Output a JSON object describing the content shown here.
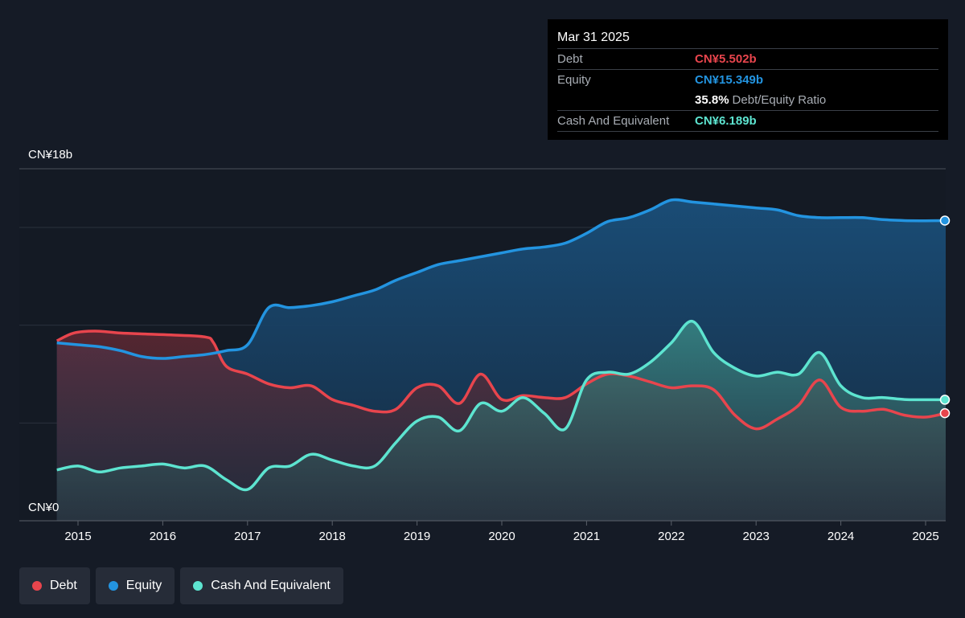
{
  "tooltip": {
    "date": "Mar 31 2025",
    "debt_label": "Debt",
    "debt_value": "CN¥5.502b",
    "equity_label": "Equity",
    "equity_value": "CN¥15.349b",
    "ratio_pct": "35.8%",
    "ratio_label": "Debt/Equity Ratio",
    "cash_label": "Cash And Equivalent",
    "cash_value": "CN¥6.189b"
  },
  "legend": [
    {
      "label": "Debt",
      "color": "#e8454d"
    },
    {
      "label": "Equity",
      "color": "#2394e0"
    },
    {
      "label": "Cash And Equivalent",
      "color": "#5de4d0"
    }
  ],
  "chart_data": {
    "type": "area",
    "ylim": [
      0,
      18
    ],
    "y_tick_labels": {
      "top": "CN¥18b",
      "bottom": "CN¥0"
    },
    "x_tick_labels": [
      "2015",
      "2016",
      "2017",
      "2018",
      "2019",
      "2020",
      "2021",
      "2022",
      "2023",
      "2024",
      "2025"
    ],
    "xlim": [
      2014.75,
      2025.25
    ],
    "colors": {
      "debt": "#e8454d",
      "equity": "#2394e0",
      "cash": "#5de4d0"
    },
    "series": [
      {
        "key": "debt",
        "x": [
          2014.75,
          2014.95,
          2015.2,
          2015.5,
          2015.8,
          2016.1,
          2016.5,
          2016.6,
          2016.75,
          2017.0,
          2017.25,
          2017.5,
          2017.75,
          2018.0,
          2018.25,
          2018.5,
          2018.75,
          2019.0,
          2019.25,
          2019.5,
          2019.75,
          2020.0,
          2020.25,
          2020.5,
          2020.75,
          2021.0,
          2021.25,
          2021.5,
          2021.75,
          2022.0,
          2022.25,
          2022.5,
          2022.75,
          2023.0,
          2023.25,
          2023.5,
          2023.75,
          2024.0,
          2024.25,
          2024.5,
          2024.75,
          2025.0,
          2025.25
        ],
        "values": [
          9.2,
          9.6,
          9.7,
          9.6,
          9.55,
          9.5,
          9.4,
          9.1,
          7.9,
          7.5,
          7.0,
          6.8,
          6.9,
          6.2,
          5.9,
          5.6,
          5.7,
          6.8,
          6.9,
          6.0,
          7.5,
          6.2,
          6.4,
          6.3,
          6.3,
          7.0,
          7.5,
          7.4,
          7.1,
          6.8,
          6.9,
          6.7,
          5.4,
          4.7,
          5.2,
          5.9,
          7.2,
          5.8,
          5.6,
          5.7,
          5.4,
          5.3,
          5.502
        ]
      },
      {
        "key": "equity",
        "x": [
          2014.75,
          2015.0,
          2015.25,
          2015.5,
          2015.75,
          2016.0,
          2016.25,
          2016.5,
          2016.75,
          2017.0,
          2017.25,
          2017.5,
          2017.75,
          2018.0,
          2018.25,
          2018.5,
          2018.75,
          2019.0,
          2019.25,
          2019.5,
          2019.75,
          2020.0,
          2020.25,
          2020.5,
          2020.75,
          2021.0,
          2021.25,
          2021.5,
          2021.75,
          2022.0,
          2022.25,
          2022.5,
          2022.75,
          2023.0,
          2023.25,
          2023.5,
          2023.75,
          2024.0,
          2024.25,
          2024.5,
          2024.75,
          2025.0,
          2025.25
        ],
        "values": [
          9.1,
          9.0,
          8.9,
          8.7,
          8.4,
          8.3,
          8.4,
          8.5,
          8.7,
          9.0,
          10.9,
          10.9,
          11.0,
          11.2,
          11.5,
          11.8,
          12.3,
          12.7,
          13.1,
          13.3,
          13.5,
          13.7,
          13.9,
          14.0,
          14.2,
          14.7,
          15.3,
          15.5,
          15.9,
          16.4,
          16.3,
          16.2,
          16.1,
          16.0,
          15.9,
          15.6,
          15.5,
          15.5,
          15.5,
          15.4,
          15.35,
          15.34,
          15.349
        ]
      },
      {
        "key": "cash",
        "x": [
          2014.75,
          2015.0,
          2015.25,
          2015.5,
          2015.75,
          2016.0,
          2016.25,
          2016.5,
          2016.75,
          2017.0,
          2017.25,
          2017.5,
          2017.75,
          2018.0,
          2018.25,
          2018.5,
          2018.75,
          2019.0,
          2019.25,
          2019.5,
          2019.75,
          2020.0,
          2020.25,
          2020.5,
          2020.75,
          2021.0,
          2021.25,
          2021.5,
          2021.75,
          2022.0,
          2022.25,
          2022.5,
          2022.75,
          2023.0,
          2023.25,
          2023.5,
          2023.75,
          2024.0,
          2024.25,
          2024.5,
          2024.75,
          2025.0,
          2025.25
        ],
        "values": [
          2.6,
          2.8,
          2.5,
          2.7,
          2.8,
          2.9,
          2.7,
          2.8,
          2.1,
          1.6,
          2.7,
          2.8,
          3.4,
          3.1,
          2.8,
          2.8,
          4.0,
          5.1,
          5.3,
          4.6,
          6.0,
          5.6,
          6.3,
          5.5,
          4.7,
          7.2,
          7.6,
          7.5,
          8.1,
          9.1,
          10.2,
          8.6,
          7.8,
          7.4,
          7.6,
          7.5,
          8.6,
          6.9,
          6.3,
          6.3,
          6.2,
          6.19,
          6.189
        ]
      }
    ]
  }
}
